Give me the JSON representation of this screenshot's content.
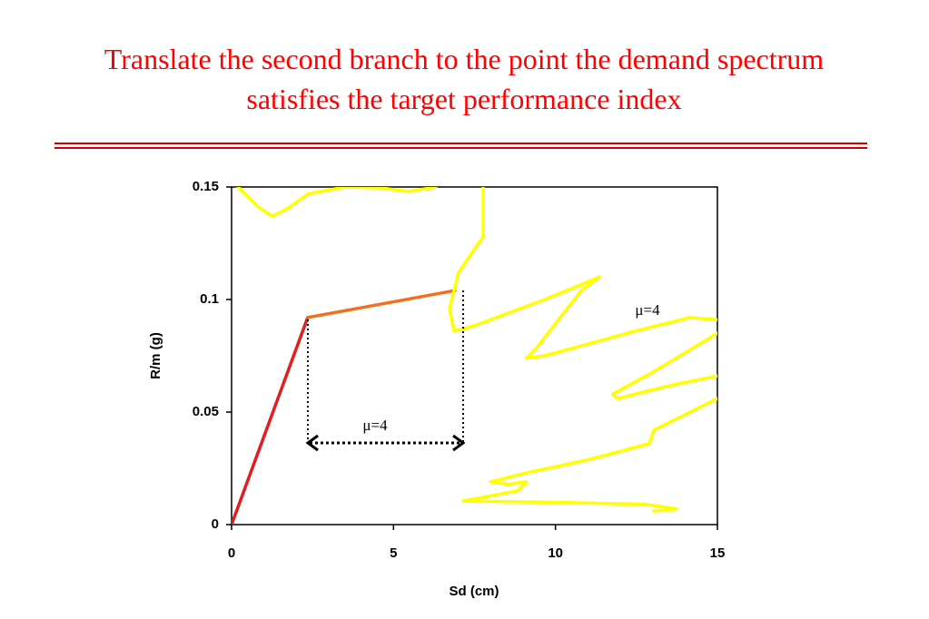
{
  "chart_data": {
    "type": "line",
    "title": [
      "Translate the second branch to the point the demand spectrum",
      "satisfies the target performance index"
    ],
    "xlabel": "Sd (cm)",
    "ylabel": "R/m (g)",
    "xlim": [
      0,
      15
    ],
    "ylim": [
      0,
      0.15
    ],
    "xticks": [
      0,
      5,
      10,
      15
    ],
    "yticks": [
      0,
      0.05,
      0.1,
      0.15
    ],
    "annotations": [
      "μ=4",
      "μ=4"
    ],
    "series": [
      {
        "color": "#e02020",
        "x": [
          0,
          2.35
        ],
        "values": [
          0,
          0.092
        ]
      },
      {
        "color": "#f07020",
        "x": [
          2.35,
          6.9
        ],
        "values": [
          0.092,
          0.104
        ]
      },
      {
        "color": "#ffff00",
        "x": [
          0.2,
          0.84,
          1.26,
          1.68,
          2.38,
          3.5,
          4.63,
          5.47,
          6.31,
          null,
          7.77,
          7.77,
          7.01,
          6.73,
          6.87,
          7.43,
          9.67,
          11.36,
          10.8,
          9.39,
          9.11,
          9.67,
          12.47,
          14.16,
          15,
          null,
          15,
          13.04,
          11.77,
          11.91,
          13.6,
          15,
          null,
          15,
          13.88,
          13.04,
          12.9,
          11.07,
          9.11,
          8.0,
          8.55,
          9.11,
          8.83,
          7.15,
          9.67,
          12.76,
          13.74,
          13.04
        ],
        "values": [
          0.15,
          0.141,
          0.137,
          0.14,
          0.147,
          0.15,
          0.1496,
          0.148,
          0.15,
          null,
          0.15,
          0.128,
          0.112,
          0.096,
          0.086,
          0.088,
          0.1,
          0.11,
          0.104,
          0.078,
          0.074,
          0.075,
          0.086,
          0.092,
          0.091,
          null,
          0.085,
          0.068,
          0.058,
          0.056,
          0.062,
          0.066,
          null,
          0.056,
          0.048,
          0.042,
          0.036,
          0.029,
          0.023,
          0.019,
          0.018,
          0.019,
          0.015,
          0.0105,
          0.01,
          0.009,
          0.007,
          0.006
        ]
      }
    ]
  }
}
